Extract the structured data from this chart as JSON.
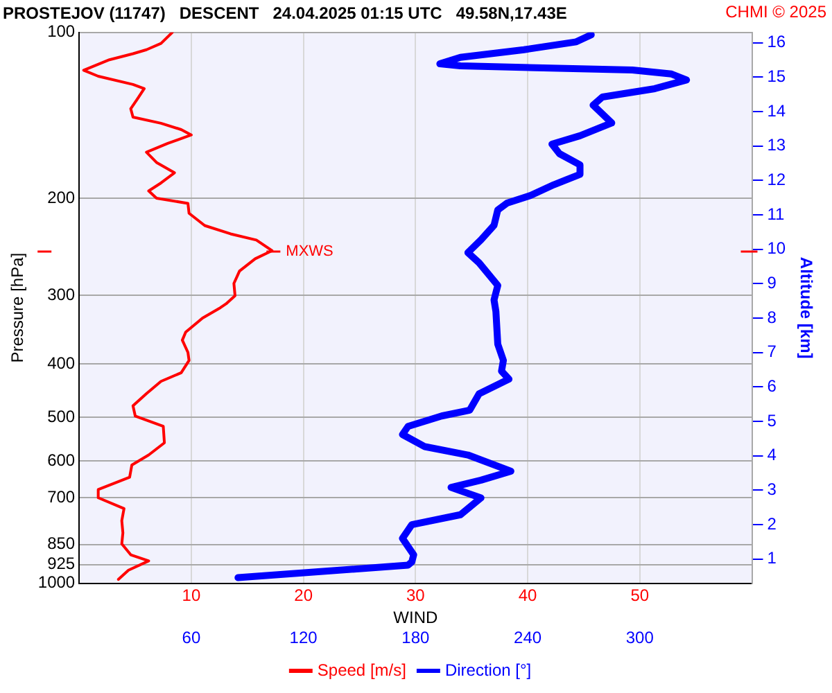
{
  "chart_data": {
    "type": "line",
    "title": "PROSTEJOV (11747)   DESCENT   24.04.2025 01:15 UTC   49.58N,17.43E",
    "xlabel": "WIND",
    "ylabel": "Pressure [hPa]",
    "y2label": "Altitude [km]",
    "annotations": [
      "CHMI © 2025",
      {
        "text": "MXWS",
        "x": 17.2,
        "y": 250
      }
    ],
    "xlim": [
      0,
      60
    ],
    "xticks": [
      10,
      20,
      30,
      40,
      50
    ],
    "x2lim": [
      0,
      360
    ],
    "x2ticks": [
      60,
      120,
      180,
      240,
      300
    ],
    "ylim": [
      1000,
      100
    ],
    "yticks": [
      100,
      200,
      300,
      400,
      500,
      600,
      700,
      850,
      925,
      1000
    ],
    "y2lim": [
      0.3,
      16.3
    ],
    "y2ticks": [
      1,
      2,
      3,
      4,
      5,
      6,
      7,
      8,
      9,
      10,
      11,
      12,
      13,
      14,
      15,
      16
    ],
    "log": "y",
    "grid": true,
    "legend": "bottom",
    "series": [
      {
        "name": "Speed [m/s]",
        "color": "#ff0000",
        "x": [
          8.3,
          7.3,
          6.0,
          4.8,
          2.7,
          0.4,
          1.7,
          4.8,
          5.8,
          5.2,
          4.6,
          4.8,
          7.3,
          9.1,
          10.0,
          7.9,
          6.0,
          6.9,
          8.5,
          7.3,
          6.2,
          6.9,
          9.7,
          9.8,
          11.2,
          13.5,
          15.8,
          17.2,
          15.7,
          14.3,
          13.8,
          13.9,
          13.1,
          12.6,
          11.0,
          10.8,
          9.5,
          9.2,
          9.7,
          9.8,
          9.1,
          7.3,
          6.0,
          4.8,
          5.0,
          7.5,
          7.6,
          6.2,
          4.7,
          4.5,
          1.7,
          1.7,
          4.0,
          3.8,
          3.9,
          3.8,
          4.6,
          6.2,
          4.4,
          3.5
        ],
        "values": [
          100,
          104.7,
          107.5,
          109.3,
          112.1,
          117.1,
          120.1,
          124.3,
          126.5,
          132,
          137.6,
          142.5,
          146.2,
          150.1,
          153.5,
          159,
          165,
          172.2,
          179.8,
          187.6,
          194,
          200,
          204.3,
          213,
          224.2,
          232.1,
          238.2,
          249,
          257.6,
          271.2,
          285.6,
          300.6,
          311,
          316,
          330,
          332.7,
          350,
          362,
          381,
          394,
          414.8,
          430,
          452.6,
          476.3,
          497,
          519,
          556,
          585,
          610,
          642,
          676,
          699.5,
          732,
          770,
          810,
          848,
          888,
          911,
          947,
          984
        ]
      },
      {
        "name": "Direction [°]",
        "color": "#0000ff",
        "axis": "x2",
        "x": [
          274,
          266,
          238,
          204,
          193,
          204,
          296,
          317,
          325,
          308,
          280,
          275,
          285,
          268,
          253,
          257,
          268,
          268,
          254,
          241,
          229,
          224,
          222,
          215,
          208,
          214,
          224,
          222,
          223,
          224,
          227,
          226,
          230,
          214,
          209,
          194,
          176,
          173,
          185,
          208,
          231,
          215,
          199,
          215,
          204,
          178,
          173,
          179,
          178,
          176,
          85
        ],
        "values": [
          101,
          104,
          107.5,
          111,
          114,
          115,
          117,
          119,
          122,
          126.5,
          131,
          135.5,
          146,
          154,
          159.5,
          166,
          174,
          181,
          189,
          198,
          204,
          210,
          224,
          238,
          251,
          262,
          288,
          306,
          321,
          368,
          394,
          412,
          426,
          453,
          485,
          497,
          519,
          537,
          565,
          585,
          626,
          650,
          670,
          700,
          751,
          783,
          829,
          888,
          915,
          927,
          977
        ]
      }
    ]
  }
}
